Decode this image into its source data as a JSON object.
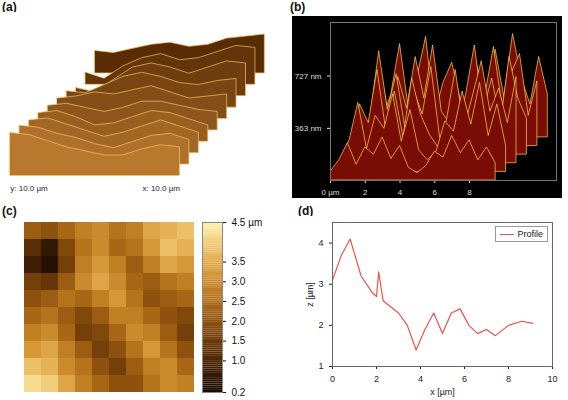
{
  "chart_data": [
    {
      "type": "surface3d",
      "panel": "(a)",
      "x_label": "x: 10.0 µm",
      "y_label": "y: 10.0 µm",
      "z": [
        [
          2.2,
          2.0,
          2.4,
          2.8,
          3.0,
          2.6,
          2.8,
          3.4,
          3.6,
          3.8
        ],
        [
          1.2,
          0.6,
          1.8,
          2.6,
          3.0,
          2.4,
          2.6,
          3.2,
          3.8,
          3.6
        ],
        [
          0.8,
          0.4,
          1.6,
          2.8,
          3.2,
          2.8,
          2.2,
          2.8,
          3.4,
          3.2
        ],
        [
          1.6,
          1.4,
          2.2,
          3.0,
          3.4,
          3.0,
          2.4,
          2.2,
          2.6,
          2.8
        ],
        [
          2.0,
          2.2,
          2.6,
          2.4,
          2.8,
          3.2,
          2.6,
          2.0,
          2.2,
          2.4
        ],
        [
          2.4,
          2.6,
          2.2,
          1.8,
          2.2,
          2.8,
          2.8,
          2.4,
          2.0,
          1.8
        ],
        [
          2.8,
          3.0,
          2.4,
          1.6,
          1.8,
          2.4,
          3.0,
          2.8,
          2.2,
          1.6
        ],
        [
          3.2,
          3.4,
          2.8,
          2.2,
          1.6,
          2.0,
          2.6,
          3.2,
          2.6,
          2.0
        ],
        [
          3.8,
          3.6,
          3.0,
          2.6,
          2.0,
          1.6,
          2.2,
          2.8,
          3.0,
          2.4
        ],
        [
          4.2,
          4.0,
          3.4,
          2.8,
          2.4,
          2.0,
          2.0,
          2.6,
          3.0,
          2.8
        ]
      ]
    },
    {
      "type": "surface3d",
      "panel": "(b)",
      "xlim": [
        0,
        13
      ],
      "xticks": [
        {
          "value": 0,
          "label": "0 µm"
        },
        2,
        4,
        6,
        8
      ],
      "ylim": [
        0,
        1100
      ],
      "yticks": [
        {
          "value": 363,
          "label": "363 nm"
        },
        {
          "value": 727,
          "label": "727 nm"
        }
      ],
      "z": [
        [
          120,
          300,
          650,
          200,
          420,
          700,
          150,
          380,
          520,
          260,
          180,
          90,
          340,
          610,
          280,
          720,
          410,
          230,
          560,
          300
        ],
        [
          200,
          540,
          180,
          480,
          260,
          620,
          330,
          700,
          240,
          150,
          100,
          260,
          580,
          350,
          690,
          270,
          500,
          640,
          210,
          450
        ],
        [
          80,
          260,
          720,
          310,
          560,
          190,
          450,
          280,
          610,
          120,
          70,
          180,
          420,
          760,
          300,
          530,
          220,
          680,
          390,
          250
        ],
        [
          150,
          410,
          280,
          650,
          230,
          500,
          180,
          590,
          340,
          200,
          110,
          300,
          650,
          240,
          470,
          710,
          360,
          520,
          280,
          600
        ],
        [
          90,
          220,
          480,
          160,
          390,
          300,
          540,
          210,
          430,
          150,
          80,
          140,
          350,
          280,
          560,
          330,
          620,
          250,
          470,
          180
        ],
        [
          60,
          140,
          260,
          110,
          230,
          180,
          300,
          150,
          240,
          90,
          50,
          100,
          200,
          160,
          310,
          190,
          280,
          140,
          230,
          120
        ]
      ]
    },
    {
      "type": "heatmap",
      "panel": "(c)",
      "z": [
        [
          2.2,
          2.0,
          2.4,
          2.8,
          3.0,
          2.6,
          2.8,
          3.4,
          3.6,
          3.8
        ],
        [
          1.2,
          0.6,
          1.8,
          2.6,
          3.0,
          2.4,
          2.6,
          3.2,
          3.8,
          3.6
        ],
        [
          0.8,
          0.4,
          1.6,
          2.8,
          3.2,
          2.8,
          2.2,
          2.8,
          3.4,
          3.2
        ],
        [
          1.6,
          1.4,
          2.2,
          3.0,
          3.4,
          3.0,
          2.4,
          2.2,
          2.6,
          2.8
        ],
        [
          2.0,
          2.2,
          2.6,
          2.4,
          2.8,
          3.2,
          2.6,
          2.0,
          2.2,
          2.4
        ],
        [
          2.4,
          2.6,
          2.2,
          1.8,
          2.2,
          2.8,
          2.8,
          2.4,
          2.0,
          1.8
        ],
        [
          2.8,
          3.0,
          2.4,
          1.6,
          1.8,
          2.4,
          3.0,
          2.8,
          2.2,
          1.6
        ],
        [
          3.2,
          3.4,
          2.8,
          2.2,
          1.6,
          2.0,
          2.6,
          3.2,
          2.6,
          2.0
        ],
        [
          3.8,
          3.6,
          3.0,
          2.6,
          2.0,
          1.6,
          2.2,
          2.8,
          3.0,
          2.4
        ],
        [
          4.2,
          4.0,
          3.4,
          2.8,
          2.4,
          2.0,
          2.0,
          2.6,
          3.0,
          2.8
        ]
      ],
      "colorbar": {
        "range": [
          0.2,
          4.5
        ],
        "ticks": [
          0.2,
          {
            "value": 1.0,
            "label": "1.0"
          },
          1.5,
          {
            "value": 2.0,
            "label": "2.0"
          },
          2.5,
          {
            "value": 3.0,
            "label": "3.0"
          },
          3.5,
          {
            "value": 4.5,
            "label": "4.5 µm"
          }
        ]
      }
    },
    {
      "type": "line",
      "panel": "(d)",
      "x_label": "x [µm]",
      "y_label": "z [µm]",
      "legend": "top-right",
      "x": [
        0,
        0.4,
        0.8,
        1.3,
        1.8,
        2.0,
        2.1,
        2.3,
        3.0,
        3.4,
        3.8,
        4.2,
        4.6,
        5.0,
        5.4,
        5.8,
        6.2,
        6.6,
        7.0,
        7.4,
        8.0,
        8.6,
        9.1
      ],
      "series": [
        {
          "name": "Profile",
          "color": "#e8534a",
          "values": [
            3.1,
            3.7,
            4.1,
            3.2,
            2.8,
            2.7,
            3.3,
            2.6,
            2.3,
            2.0,
            1.4,
            1.9,
            2.3,
            1.8,
            2.3,
            2.4,
            2.0,
            1.8,
            1.9,
            1.75,
            2.0,
            2.1,
            2.05
          ]
        }
      ],
      "xlim": [
        0,
        10
      ],
      "xticks": [
        0,
        2,
        4,
        6,
        8,
        10
      ],
      "ylim": [
        1,
        4.5
      ],
      "yticks": [
        1,
        2,
        3,
        4
      ]
    }
  ]
}
